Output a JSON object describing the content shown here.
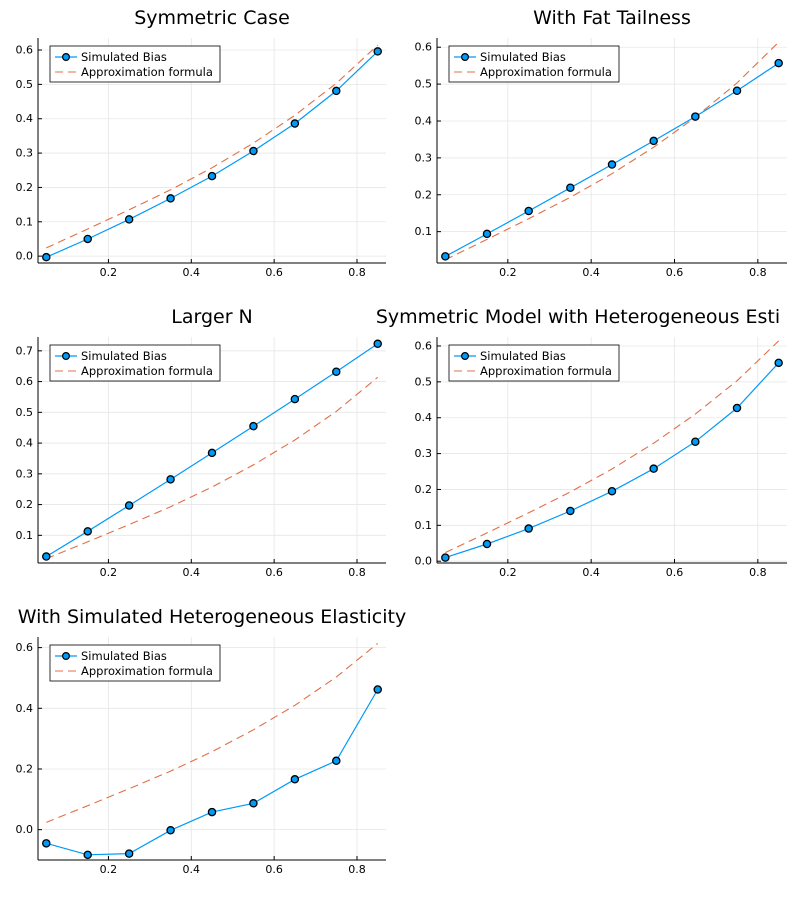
{
  "colors": {
    "simulated": "#009AF9",
    "approximation": "#E26F46",
    "marker_edge": "#000000",
    "grid": "#E6E6E6",
    "axis": "#000000"
  },
  "legend": {
    "simulated_label": "Simulated Bias",
    "approximation_label": "Approximation formula",
    "position": "top-left"
  },
  "chart_data": [
    {
      "type": "line",
      "title": "Symmetric Case",
      "xlabel": "",
      "ylabel": "",
      "xlim": [
        0.03,
        0.87
      ],
      "ylim": [
        -0.02,
        0.635
      ],
      "xticks": [
        0.2,
        0.4,
        0.6,
        0.8
      ],
      "xtick_labels": [
        "0.2",
        "0.4",
        "0.6",
        "0.8"
      ],
      "yticks": [
        0.0,
        0.1,
        0.2,
        0.3,
        0.4,
        0.5,
        0.6
      ],
      "ytick_labels": [
        "0.0",
        "0.1",
        "0.2",
        "0.3",
        "0.4",
        "0.5",
        "0.6"
      ],
      "grid": true,
      "legend": "top-left",
      "series": [
        {
          "name": "Simulated Bias",
          "style": "line+markers",
          "x": [
            0.05,
            0.15,
            0.25,
            0.35,
            0.45,
            0.55,
            0.65,
            0.75,
            0.85
          ],
          "y": [
            -0.003,
            0.05,
            0.107,
            0.168,
            0.233,
            0.306,
            0.386,
            0.481,
            0.596
          ]
        },
        {
          "name": "Approximation formula",
          "style": "dashed",
          "x": [
            0.05,
            0.15,
            0.25,
            0.35,
            0.45,
            0.55,
            0.65,
            0.75,
            0.85
          ],
          "y": [
            0.024,
            0.079,
            0.135,
            0.193,
            0.257,
            0.329,
            0.41,
            0.503,
            0.614
          ]
        }
      ]
    },
    {
      "type": "line",
      "title": "With Fat Tailness",
      "xlabel": "",
      "ylabel": "",
      "xlim": [
        0.03,
        0.87
      ],
      "ylim": [
        0.015,
        0.625
      ],
      "xticks": [
        0.2,
        0.4,
        0.6,
        0.8
      ],
      "xtick_labels": [
        "0.2",
        "0.4",
        "0.6",
        "0.8"
      ],
      "yticks": [
        0.1,
        0.2,
        0.3,
        0.4,
        0.5,
        0.6
      ],
      "ytick_labels": [
        "0.1",
        "0.2",
        "0.3",
        "0.4",
        "0.5",
        "0.6"
      ],
      "grid": true,
      "legend": "top-left",
      "series": [
        {
          "name": "Simulated Bias",
          "style": "line+markers",
          "x": [
            0.05,
            0.15,
            0.25,
            0.35,
            0.45,
            0.55,
            0.65,
            0.75,
            0.85
          ],
          "y": [
            0.033,
            0.094,
            0.156,
            0.219,
            0.282,
            0.346,
            0.412,
            0.482,
            0.557
          ]
        },
        {
          "name": "Approximation formula",
          "style": "dashed",
          "x": [
            0.05,
            0.15,
            0.25,
            0.35,
            0.45,
            0.55,
            0.65,
            0.75,
            0.85
          ],
          "y": [
            0.024,
            0.079,
            0.135,
            0.193,
            0.257,
            0.329,
            0.41,
            0.503,
            0.614
          ]
        }
      ]
    },
    {
      "type": "line",
      "title": "Larger N",
      "xlabel": "",
      "ylabel": "",
      "xlim": [
        0.03,
        0.87
      ],
      "ylim": [
        0.01,
        0.745
      ],
      "xticks": [
        0.2,
        0.4,
        0.6,
        0.8
      ],
      "xtick_labels": [
        "0.2",
        "0.4",
        "0.6",
        "0.8"
      ],
      "yticks": [
        0.1,
        0.2,
        0.3,
        0.4,
        0.5,
        0.6,
        0.7
      ],
      "ytick_labels": [
        "0.1",
        "0.2",
        "0.3",
        "0.4",
        "0.5",
        "0.6",
        "0.7"
      ],
      "grid": true,
      "legend": "top-left",
      "series": [
        {
          "name": "Simulated Bias",
          "style": "line+markers",
          "x": [
            0.05,
            0.15,
            0.25,
            0.35,
            0.45,
            0.55,
            0.65,
            0.75,
            0.85
          ],
          "y": [
            0.031,
            0.113,
            0.197,
            0.282,
            0.368,
            0.455,
            0.543,
            0.632,
            0.723
          ]
        },
        {
          "name": "Approximation formula",
          "style": "dashed",
          "x": [
            0.05,
            0.15,
            0.25,
            0.35,
            0.45,
            0.55,
            0.65,
            0.75,
            0.85
          ],
          "y": [
            0.024,
            0.079,
            0.135,
            0.193,
            0.257,
            0.329,
            0.41,
            0.503,
            0.614
          ]
        }
      ]
    },
    {
      "type": "line",
      "title": "Symmetric Model with Heterogeneous Esti",
      "xlabel": "",
      "ylabel": "",
      "xlim": [
        0.03,
        0.87
      ],
      "ylim": [
        -0.005,
        0.625
      ],
      "xticks": [
        0.2,
        0.4,
        0.6,
        0.8
      ],
      "xtick_labels": [
        "0.2",
        "0.4",
        "0.6",
        "0.8"
      ],
      "yticks": [
        0.0,
        0.1,
        0.2,
        0.3,
        0.4,
        0.5,
        0.6
      ],
      "ytick_labels": [
        "0.0",
        "0.1",
        "0.2",
        "0.3",
        "0.4",
        "0.5",
        "0.6"
      ],
      "grid": true,
      "legend": "top-left",
      "series": [
        {
          "name": "Simulated Bias",
          "style": "line+markers",
          "x": [
            0.05,
            0.15,
            0.25,
            0.35,
            0.45,
            0.55,
            0.65,
            0.75,
            0.85
          ],
          "y": [
            0.01,
            0.048,
            0.091,
            0.14,
            0.195,
            0.258,
            0.333,
            0.427,
            0.553
          ]
        },
        {
          "name": "Approximation formula",
          "style": "dashed",
          "x": [
            0.05,
            0.15,
            0.25,
            0.35,
            0.45,
            0.55,
            0.65,
            0.75,
            0.85
          ],
          "y": [
            0.024,
            0.079,
            0.135,
            0.193,
            0.257,
            0.329,
            0.41,
            0.503,
            0.614
          ]
        }
      ]
    },
    {
      "type": "line",
      "title": "With Simulated Heterogeneous Elasticity",
      "xlabel": "",
      "ylabel": "",
      "xlim": [
        0.03,
        0.87
      ],
      "ylim": [
        -0.1,
        0.635
      ],
      "xticks": [
        0.2,
        0.4,
        0.6,
        0.8
      ],
      "xtick_labels": [
        "0.2",
        "0.4",
        "0.6",
        "0.8"
      ],
      "yticks": [
        0.0,
        0.2,
        0.4,
        0.6
      ],
      "ytick_labels": [
        "0.0",
        "0.2",
        "0.4",
        "0.6"
      ],
      "grid": true,
      "legend": "top-left",
      "series": [
        {
          "name": "Simulated Bias",
          "style": "line+markers",
          "x": [
            0.05,
            0.15,
            0.25,
            0.35,
            0.45,
            0.55,
            0.65,
            0.75,
            0.85
          ],
          "y": [
            -0.045,
            -0.083,
            -0.079,
            -0.002,
            0.058,
            0.087,
            0.166,
            0.227,
            0.462
          ]
        },
        {
          "name": "Approximation formula",
          "style": "dashed",
          "x": [
            0.05,
            0.15,
            0.25,
            0.35,
            0.45,
            0.55,
            0.65,
            0.75,
            0.85
          ],
          "y": [
            0.024,
            0.079,
            0.135,
            0.193,
            0.257,
            0.329,
            0.41,
            0.503,
            0.614
          ]
        }
      ]
    }
  ]
}
